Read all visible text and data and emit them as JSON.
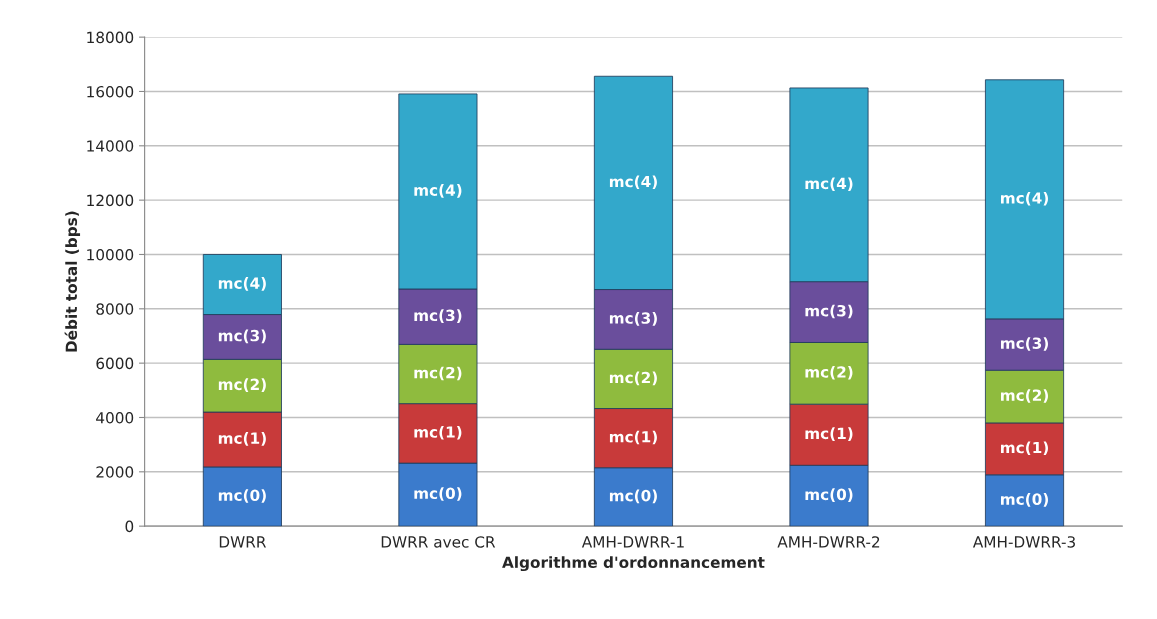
{
  "chart_data": {
    "type": "bar",
    "stacked": true,
    "xlabel": "Algorithme d'ordonnancement",
    "ylabel": "Débit total (bps)",
    "categories": [
      "DWRR",
      "DWRR avec CR",
      "AMH-DWRR-1",
      "AMH-DWRR-2",
      "AMH-DWRR-3"
    ],
    "series": [
      {
        "name": "mc(0)",
        "color": "#3b7bcc",
        "values": [
          2180,
          2320,
          2150,
          2240,
          1890
        ]
      },
      {
        "name": "mc(1)",
        "color": "#c83a3a",
        "values": [
          2020,
          2190,
          2180,
          2250,
          1910
        ]
      },
      {
        "name": "mc(2)",
        "color": "#8fbb3e",
        "values": [
          1940,
          2180,
          2180,
          2270,
          1940
        ]
      },
      {
        "name": "mc(3)",
        "color": "#6a4e9c",
        "values": [
          1650,
          2040,
          2200,
          2240,
          1890
        ]
      },
      {
        "name": "mc(4)",
        "color": "#33a8cb",
        "values": [
          2210,
          7180,
          7850,
          7130,
          8800
        ]
      }
    ],
    "ylim": [
      0,
      18000
    ],
    "yticks": [
      0,
      2000,
      4000,
      6000,
      8000,
      10000,
      12000,
      14000,
      16000,
      18000
    ],
    "grid": "y",
    "legend": false
  }
}
